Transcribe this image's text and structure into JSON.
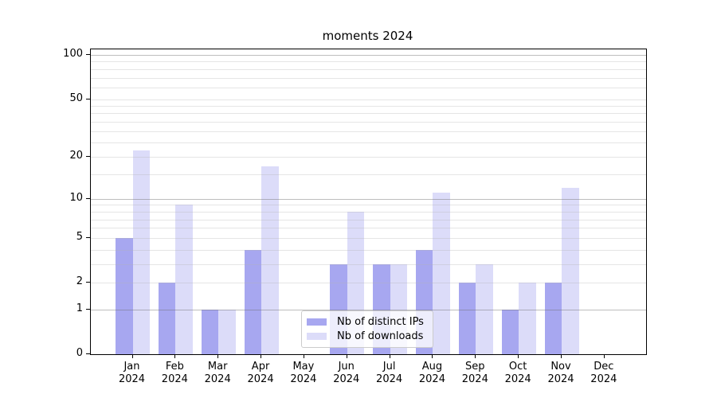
{
  "chart_data": {
    "type": "bar",
    "title": "moments 2024",
    "categories": [
      "Jan",
      "Feb",
      "Mar",
      "Apr",
      "May",
      "Jun",
      "Jul",
      "Aug",
      "Sep",
      "Oct",
      "Nov",
      "Dec"
    ],
    "year_label": "2024",
    "series": [
      {
        "name": "Nb of distinct IPs",
        "color": "#a7a7f0",
        "values": [
          5,
          2,
          1,
          4,
          0,
          3,
          3,
          4,
          2,
          1,
          2,
          0
        ]
      },
      {
        "name": "Nb of downloads",
        "color": "#dcdcf9",
        "values": [
          22,
          9,
          1,
          17,
          0,
          8,
          3,
          11,
          3,
          2,
          12,
          0
        ]
      }
    ],
    "xlabel": "",
    "ylabel": "",
    "yscale": "log1p",
    "ylim": [
      0,
      110
    ],
    "yticks": [
      0,
      1,
      2,
      5,
      10,
      20,
      50,
      100
    ],
    "major_gridlines": [
      1,
      10,
      100
    ],
    "minor_gridlines": [
      2,
      3,
      4,
      5,
      6,
      7,
      8,
      9,
      15,
      20,
      25,
      30,
      35,
      40,
      45,
      50,
      60,
      70,
      80,
      90
    ],
    "grid": true,
    "legend_position": "lower center-left",
    "colors": {
      "bar_distinct_ips": "#a7a7f0",
      "bar_downloads": "#dcdcf9",
      "major_grid": "#b0b0b0",
      "minor_grid": "#e3e3e3",
      "axis": "#000000",
      "background": "#ffffff"
    }
  }
}
